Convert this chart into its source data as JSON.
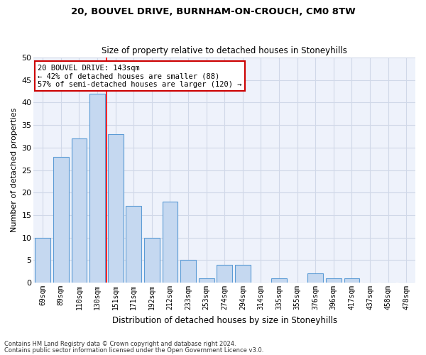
{
  "title_line1": "20, BOUVEL DRIVE, BURNHAM-ON-CROUCH, CM0 8TW",
  "title_line2": "Size of property relative to detached houses in Stoneyhills",
  "xlabel": "Distribution of detached houses by size in Stoneyhills",
  "ylabel": "Number of detached properties",
  "categories": [
    "69sqm",
    "89sqm",
    "110sqm",
    "130sqm",
    "151sqm",
    "171sqm",
    "192sqm",
    "212sqm",
    "233sqm",
    "253sqm",
    "274sqm",
    "294sqm",
    "314sqm",
    "335sqm",
    "355sqm",
    "376sqm",
    "396sqm",
    "417sqm",
    "437sqm",
    "458sqm",
    "478sqm"
  ],
  "values": [
    10,
    28,
    32,
    42,
    33,
    17,
    10,
    18,
    5,
    1,
    4,
    4,
    0,
    1,
    0,
    2,
    1,
    1,
    0,
    0,
    0
  ],
  "bar_color": "#c5d8f0",
  "bar_edge_color": "#5b9bd5",
  "grid_color": "#d0d8e8",
  "bg_color": "#eef2fb",
  "vline_x_index": 3,
  "annotation_text": "20 BOUVEL DRIVE: 143sqm\n← 42% of detached houses are smaller (88)\n57% of semi-detached houses are larger (120) →",
  "annotation_box_color": "#ffffff",
  "annotation_box_edge": "#cc0000",
  "footer_line1": "Contains HM Land Registry data © Crown copyright and database right 2024.",
  "footer_line2": "Contains public sector information licensed under the Open Government Licence v3.0.",
  "ylim": [
    0,
    50
  ],
  "yticks": [
    0,
    5,
    10,
    15,
    20,
    25,
    30,
    35,
    40,
    45,
    50
  ]
}
